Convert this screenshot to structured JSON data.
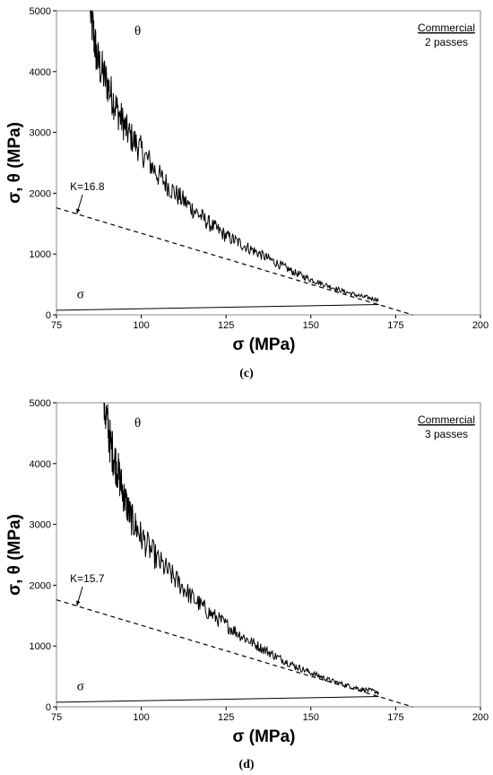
{
  "chart_data": [
    {
      "type": "line",
      "panel_label": "(c)",
      "xlabel": "σ (MPa)",
      "ylabel": "σ, θ (MPa)",
      "xlim": [
        75,
        200
      ],
      "ylim": [
        0,
        5000
      ],
      "xticks": [
        75,
        100,
        125,
        150,
        175,
        200
      ],
      "yticks": [
        0,
        1000,
        2000,
        3000,
        4000,
        5000
      ],
      "legend": {
        "line1": "Commercial",
        "line2": "2 passes"
      },
      "annotation": {
        "text": "K=16.8",
        "x": 79,
        "y": 2050,
        "arrow_to_x": 81,
        "arrow_to_y": 1660
      },
      "series": [
        {
          "name": "θ",
          "label_pos": [
            98,
            4600
          ],
          "style": "noisy",
          "x": [
            85,
            87,
            90,
            93,
            96,
            100,
            105,
            110,
            115,
            120,
            125,
            130,
            135,
            140,
            145,
            150,
            155,
            160,
            165,
            170
          ],
          "y": [
            5000,
            4200,
            3800,
            3350,
            3000,
            2700,
            2300,
            2000,
            1750,
            1500,
            1300,
            1150,
            1000,
            850,
            700,
            580,
            480,
            380,
            300,
            250
          ]
        },
        {
          "name": "σ",
          "label_pos": [
            81,
            270
          ],
          "style": "solid",
          "x": [
            75,
            170
          ],
          "y": [
            75,
            170
          ]
        },
        {
          "name": "",
          "style": "dashed",
          "x": [
            75,
            180
          ],
          "y": [
            1760,
            0
          ]
        }
      ]
    },
    {
      "type": "line",
      "panel_label": "(d)",
      "xlabel": "σ (MPa)",
      "ylabel": "σ, θ (MPa)",
      "xlim": [
        75,
        200
      ],
      "ylim": [
        0,
        5000
      ],
      "xticks": [
        75,
        100,
        125,
        150,
        175,
        200
      ],
      "yticks": [
        0,
        1000,
        2000,
        3000,
        4000,
        5000
      ],
      "legend": {
        "line1": "Commercial",
        "line2": "3 passes"
      },
      "annotation": {
        "text": "K=15.7",
        "x": 79,
        "y": 2050,
        "arrow_to_x": 81,
        "arrow_to_y": 1660
      },
      "series": [
        {
          "name": "θ",
          "label_pos": [
            98,
            4600
          ],
          "style": "noisy",
          "x": [
            89,
            91,
            93,
            95,
            97,
            100,
            105,
            110,
            115,
            120,
            125,
            130,
            135,
            140,
            145,
            150,
            155,
            160,
            165,
            170
          ],
          "y": [
            5000,
            4300,
            3900,
            3450,
            3100,
            2800,
            2400,
            2100,
            1800,
            1550,
            1350,
            1150,
            980,
            820,
            680,
            560,
            450,
            360,
            290,
            240
          ]
        },
        {
          "name": "σ",
          "label_pos": [
            81,
            270
          ],
          "style": "solid",
          "x": [
            75,
            170
          ],
          "y": [
            75,
            170
          ]
        },
        {
          "name": "",
          "style": "dashed",
          "x": [
            75,
            180
          ],
          "y": [
            1760,
            0
          ]
        }
      ]
    }
  ]
}
